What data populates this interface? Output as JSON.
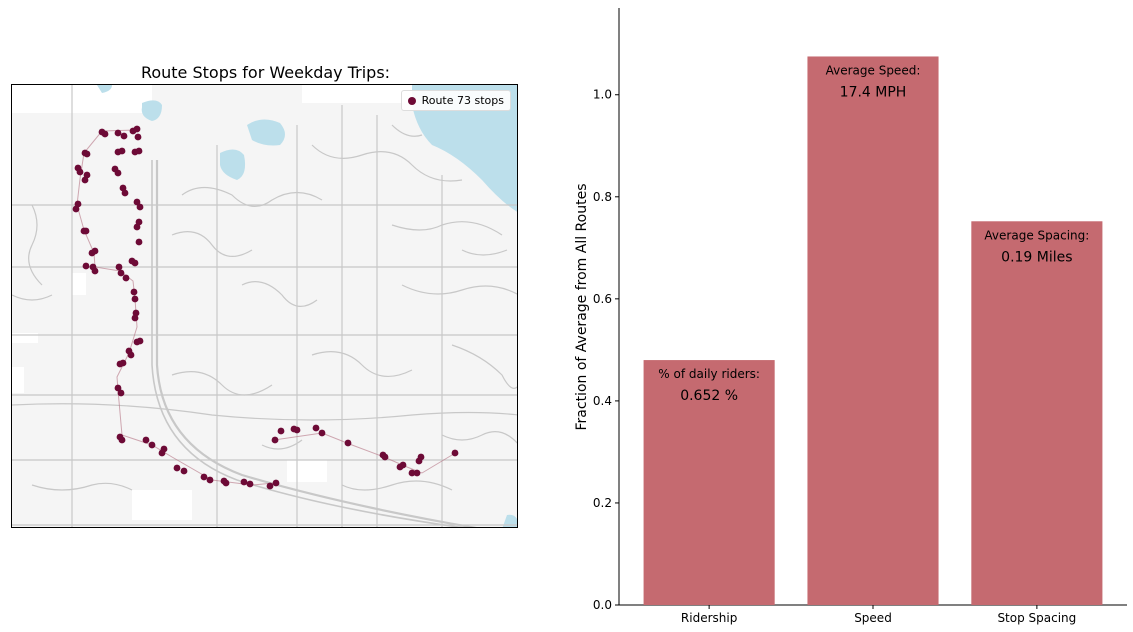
{
  "map": {
    "title": "Route Stops for Weekday Trips:",
    "legend_label": "Route 73 stops",
    "stop_color": "#6d0a36",
    "water_color": "#bcdfeb",
    "road_color": "#c8c8c8",
    "land_color": "#f5f5f5"
  },
  "chart_data": {
    "type": "bar",
    "categories": [
      "Ridership",
      "Speed",
      "Stop Spacing"
    ],
    "values": [
      0.48,
      1.075,
      0.752
    ],
    "ylabel": "Fraction of Average from All Routes",
    "ylim": [
      0,
      1.17
    ],
    "yticks": [
      "0.0",
      "0.2",
      "0.4",
      "0.6",
      "0.8",
      "1.0"
    ],
    "bar_color": "#c56a70",
    "annotations": [
      {
        "label": "% of daily riders:",
        "value": "0.652 %"
      },
      {
        "label": "Average Speed:",
        "value": "17.4 MPH"
      },
      {
        "label": "Average Spacing:",
        "value": "0.19 Miles"
      }
    ]
  }
}
